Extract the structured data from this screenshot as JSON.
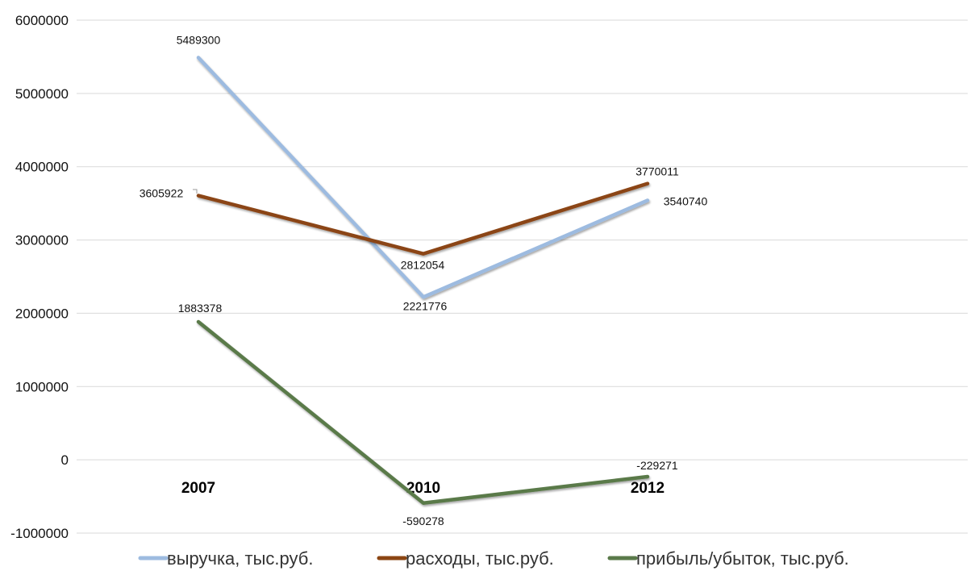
{
  "chart_data": {
    "type": "line",
    "title": "",
    "xlabel": "",
    "ylabel": "",
    "categories": [
      "2007",
      "2010",
      "2012"
    ],
    "ylim": [
      -1000000,
      6000000
    ],
    "yticks": [
      -1000000,
      0,
      1000000,
      2000000,
      3000000,
      4000000,
      5000000,
      6000000
    ],
    "grid": true,
    "legend_position": "bottom",
    "series": [
      {
        "name": "выручка, тыс.руб.",
        "color": "#9dbbe0",
        "values": [
          5489300,
          2221776,
          3540740
        ],
        "labels": [
          "5489300",
          "2221776",
          "3540740"
        ]
      },
      {
        "name": "расходы, тыс.руб.",
        "color": "#8b4513",
        "values": [
          3605922,
          2812054,
          3770011
        ],
        "labels": [
          "3605922",
          "2812054",
          "3770011"
        ]
      },
      {
        "name": "прибыль/убыток, тыс.руб.",
        "color": "#5a7a4a",
        "values": [
          1883378,
          -590278,
          -229271
        ],
        "labels": [
          "1883378",
          "-590278",
          "-229271"
        ]
      }
    ]
  }
}
